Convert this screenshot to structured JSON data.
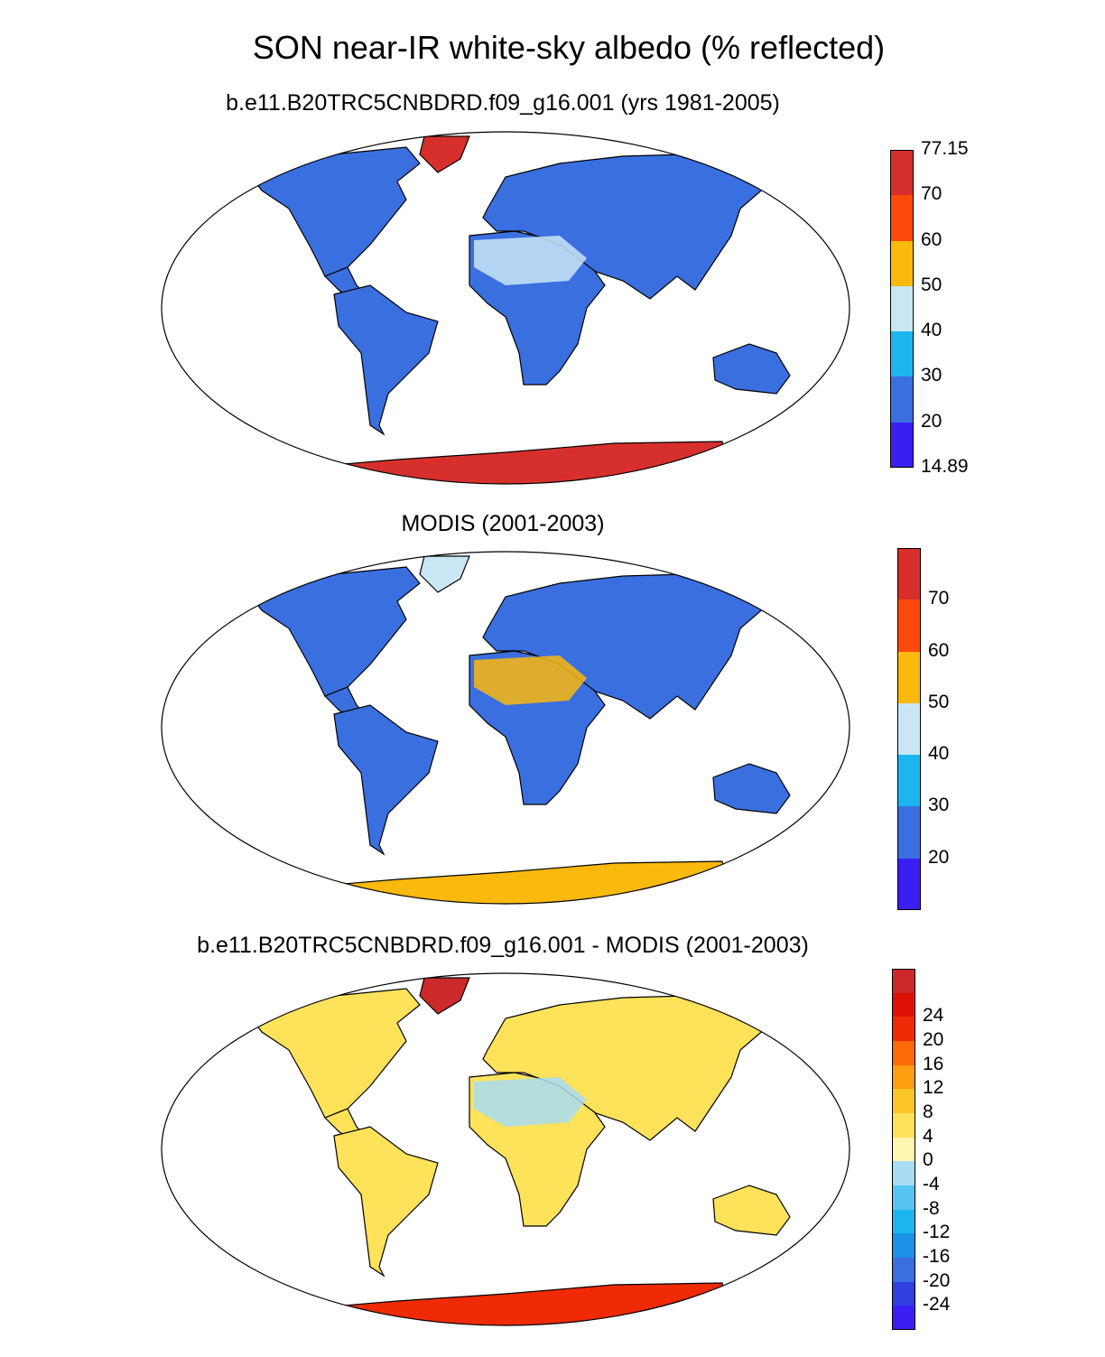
{
  "title": "SON near-IR white-sky albedo (% reflected)",
  "panels": [
    {
      "id": "model",
      "subtitle": "b.e11.B20TRC5CNBDRD.f09_g16.001 (yrs 1981-2005)",
      "colorbar": {
        "colors": [
          "#3a1ff5",
          "#3a6fe0",
          "#1bb6f0",
          "#c9e6f5",
          "#fbb90e",
          "#fc4a0a",
          "#d7302c"
        ],
        "labels": [
          "14.89",
          "20",
          "30",
          "40",
          "50",
          "60",
          "70",
          "77.15"
        ]
      },
      "land_color": "#3a6fe0",
      "antarctica_color": "#d7302c",
      "greenland_color": "#d7302c"
    },
    {
      "id": "obs",
      "subtitle": "MODIS (2001-2003)",
      "colorbar": {
        "colors": [
          "#3a1ff5",
          "#3a6fe0",
          "#1bb6f0",
          "#c9e6f5",
          "#fbb90e",
          "#fc4a0a",
          "#d7302c"
        ],
        "labels": [
          "20",
          "30",
          "40",
          "50",
          "60",
          "70"
        ]
      },
      "land_color": "#3a6fe0",
      "antarctica_color": "#fbb90e",
      "greenland_color": "#c9e6f5"
    },
    {
      "id": "diff",
      "subtitle": "b.e11.B20TRC5CNBDRD.f09_g16.001 - MODIS (2001-2003)",
      "colorbar": {
        "colors": [
          "#3a1ff5",
          "#2f3fe0",
          "#3a6fe0",
          "#1c8fe8",
          "#1bb6f0",
          "#58c4f2",
          "#a8dcf3",
          "#fff7b0",
          "#fde25a",
          "#fcc528",
          "#fc9d12",
          "#fc6a08",
          "#ee2b05",
          "#de0f05",
          "#cc2a2a"
        ],
        "labels": [
          "-24",
          "-20",
          "-16",
          "-12",
          "-8",
          "-4",
          "0",
          "4",
          "8",
          "12",
          "16",
          "20",
          "24"
        ]
      },
      "land_color": "#fde25a",
      "antarctica_color": "#ee2b05",
      "greenland_color": "#cc2a2a"
    }
  ]
}
